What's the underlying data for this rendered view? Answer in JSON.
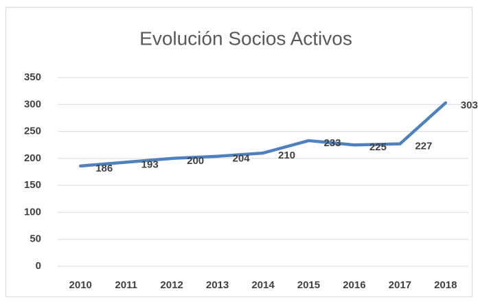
{
  "chart_data": {
    "type": "line",
    "title": "Evolución Socios Activos",
    "categories": [
      "2010",
      "2011",
      "2012",
      "2013",
      "2014",
      "2015",
      "2016",
      "2017",
      "2018"
    ],
    "series": [
      {
        "name": "Socios Activos",
        "color": "#4f81bd",
        "values": [
          186,
          193,
          200,
          204,
          210,
          233,
          225,
          227,
          303
        ]
      }
    ],
    "ylim": [
      0,
      350
    ],
    "yticks": [
      0,
      50,
      100,
      150,
      200,
      250,
      300,
      350
    ],
    "grid": true,
    "data_labels": true
  }
}
